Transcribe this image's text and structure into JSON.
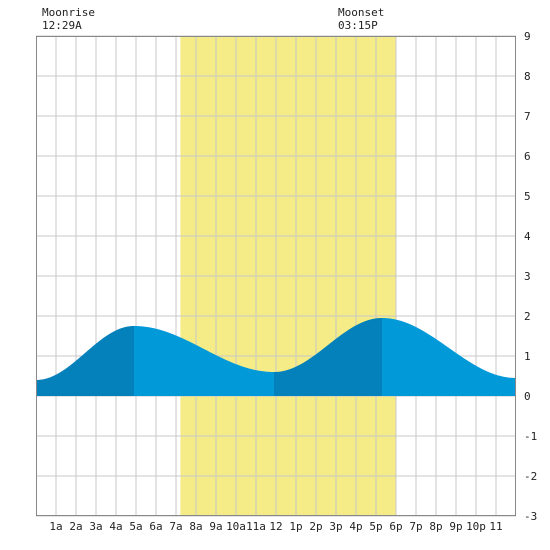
{
  "chart_data": {
    "type": "area",
    "title": "",
    "xlabel": "",
    "ylabel": "",
    "xlim": [
      0,
      24
    ],
    "ylim": [
      -3,
      9
    ],
    "grid": true,
    "x_tick_labels": [
      "1a",
      "2a",
      "3a",
      "4a",
      "5a",
      "6a",
      "7a",
      "8a",
      "9a",
      "10a",
      "11a",
      "12",
      "1p",
      "2p",
      "3p",
      "4p",
      "5p",
      "6p",
      "7p",
      "8p",
      "9p",
      "10p",
      "11"
    ],
    "y_tick_labels": [
      "9",
      "8",
      "7",
      "6",
      "5",
      "4",
      "3",
      "2",
      "1",
      "0",
      "-1",
      "-2",
      "-3"
    ],
    "y_ticks": [
      9,
      8,
      7,
      6,
      5,
      4,
      3,
      2,
      1,
      0,
      -1,
      -2,
      -3
    ],
    "daylight": {
      "start": 7.22,
      "end": 18.0,
      "color": "#f5ec88"
    },
    "moonrise": {
      "label": "Moonrise",
      "time": "12:29A",
      "x": 0.48
    },
    "moonset": {
      "label": "Moonset",
      "time": "03:15P",
      "x": 15.25
    },
    "tide_extremes": [
      {
        "x": 0.0,
        "y": 0.4
      },
      {
        "x": 4.9,
        "y": 1.75
      },
      {
        "x": 11.9,
        "y": 0.6
      },
      {
        "x": 17.3,
        "y": 1.95
      },
      {
        "x": 24.0,
        "y": 0.45
      }
    ],
    "colors": {
      "tide": "#0299d9",
      "tide_dark": "#0480ba",
      "grid": "#c8c8c8",
      "background": "#ffffff"
    }
  }
}
